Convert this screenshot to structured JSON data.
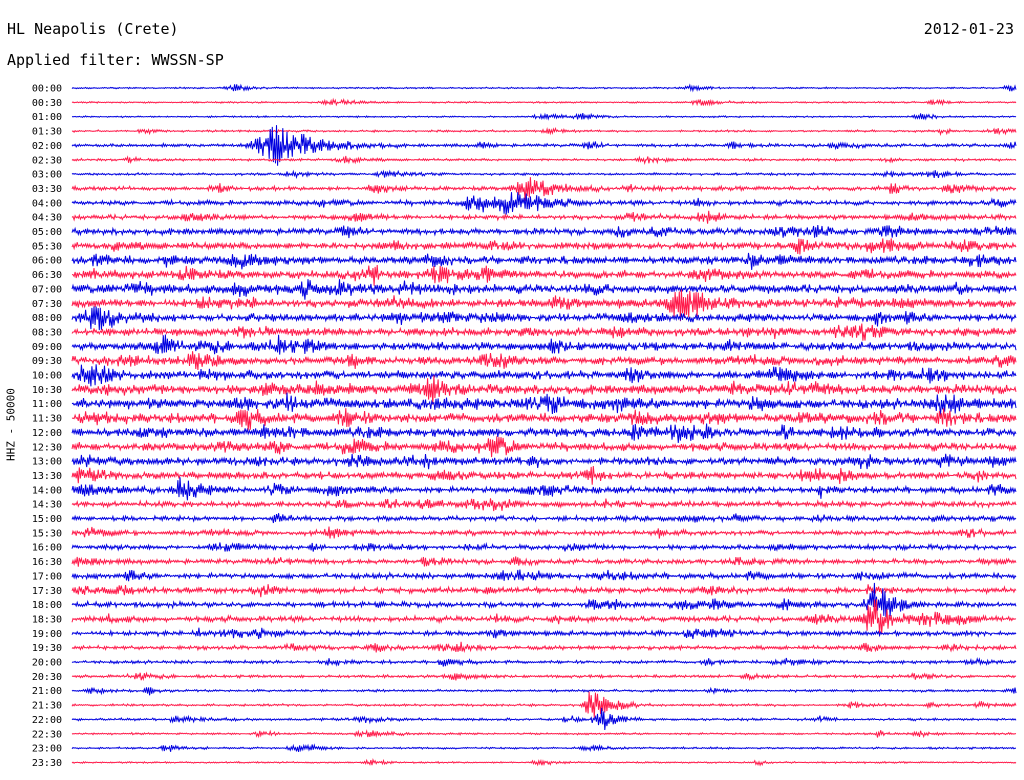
{
  "header": {
    "station": "HL Neapolis (Crete)",
    "date": "2012-01-23",
    "filter": "Applied filter: WWSSN-SP"
  },
  "chart_data": {
    "type": "line",
    "title": "HL Neapolis (Crete)",
    "subtitle": "Applied filter: WWSSN-SP",
    "date": "2012-01-23",
    "ylabel": "HHZ - 50000",
    "rows": [
      "00:00",
      "00:30",
      "01:00",
      "01:30",
      "02:00",
      "02:30",
      "03:00",
      "03:30",
      "04:00",
      "04:30",
      "05:00",
      "05:30",
      "06:00",
      "06:30",
      "07:00",
      "07:30",
      "08:00",
      "08:30",
      "09:00",
      "09:30",
      "10:00",
      "10:30",
      "11:00",
      "11:30",
      "12:00",
      "12:30",
      "13:00",
      "13:30",
      "14:00",
      "14:30",
      "15:00",
      "15:30",
      "16:00",
      "16:30",
      "17:00",
      "17:30",
      "18:00",
      "18:30",
      "19:00",
      "19:30",
      "20:00",
      "20:30",
      "21:00",
      "21:30",
      "22:00",
      "22:30",
      "23:00",
      "23:30"
    ],
    "row_duration_minutes": 30,
    "colors": [
      "#0000e0",
      "#ff1a4a"
    ],
    "noise_level": [
      0.2,
      0.2,
      0.2,
      0.25,
      0.4,
      0.3,
      0.3,
      0.5,
      0.6,
      0.6,
      0.8,
      0.9,
      1.0,
      1.0,
      1.1,
      1.1,
      1.0,
      1.0,
      1.0,
      1.0,
      1.1,
      1.2,
      1.3,
      1.2,
      1.1,
      1.0,
      1.0,
      0.9,
      0.8,
      0.7,
      0.6,
      0.6,
      0.6,
      0.6,
      0.7,
      0.7,
      0.7,
      0.7,
      0.6,
      0.5,
      0.4,
      0.35,
      0.3,
      0.3,
      0.3,
      0.25,
      0.25,
      0.2
    ],
    "events": [
      {
        "row": 4,
        "minute": 6.5,
        "amp": 4,
        "dur": 3
      },
      {
        "row": 8,
        "minute": 14,
        "amp": 3,
        "dur": 2
      },
      {
        "row": 7,
        "minute": 14.5,
        "amp": 2.5,
        "dur": 2
      },
      {
        "row": 37,
        "minute": 25.5,
        "amp": 4,
        "dur": 1.5
      },
      {
        "row": 36,
        "minute": 25.5,
        "amp": 3,
        "dur": 1.2
      },
      {
        "row": 43,
        "minute": 16.5,
        "amp": 3.5,
        "dur": 1.2
      },
      {
        "row": 44,
        "minute": 16.8,
        "amp": 3,
        "dur": 1
      },
      {
        "row": 28,
        "minute": 3.5,
        "amp": 2.5,
        "dur": 1.2
      }
    ]
  }
}
